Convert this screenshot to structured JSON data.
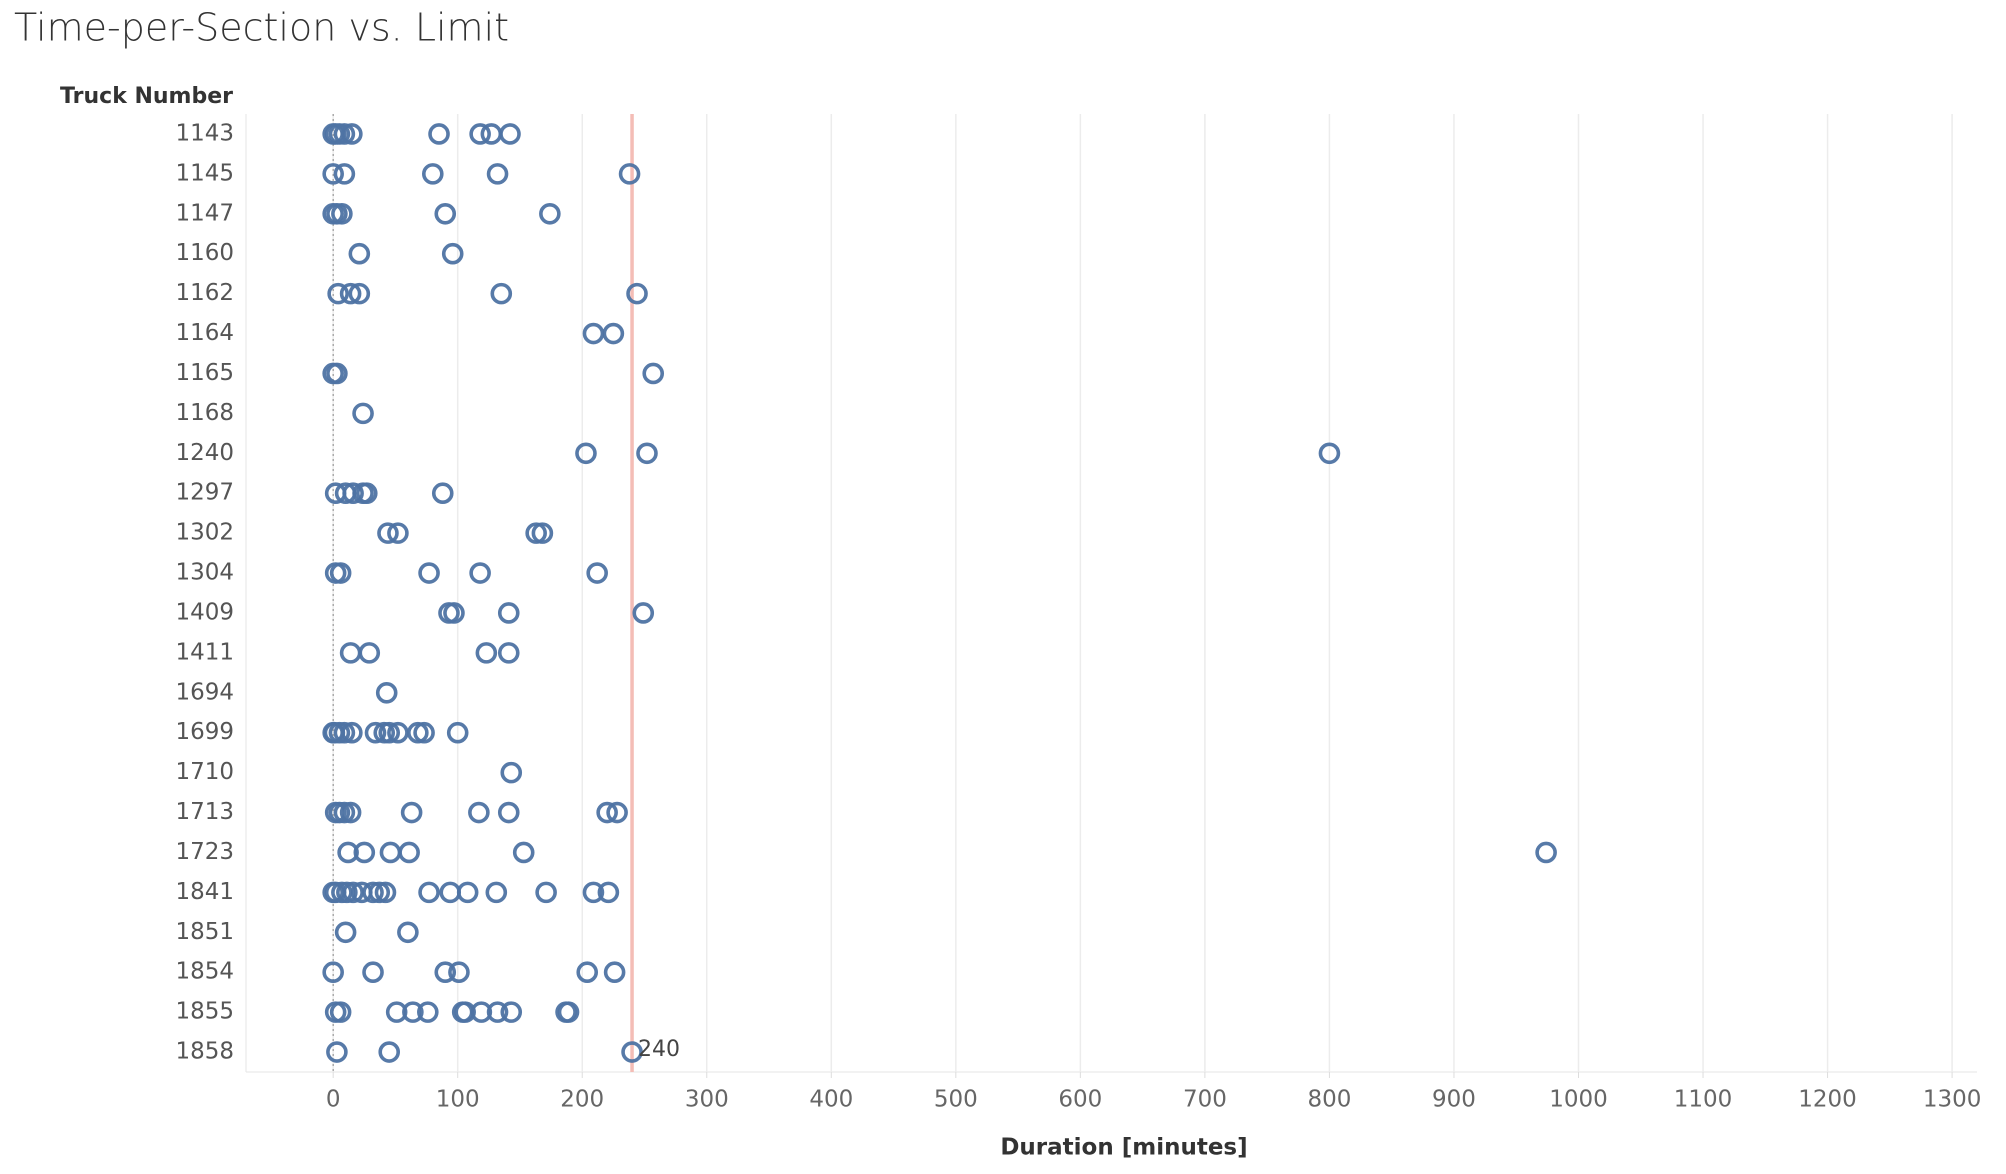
{
  "chart_data": {
    "type": "strip",
    "title": "Time-per-Section vs. Limit",
    "y_header": "Truck Number",
    "x_label": "Duration [minutes]",
    "categories": [
      "1143",
      "1145",
      "1147",
      "1160",
      "1162",
      "1164",
      "1165",
      "1168",
      "1240",
      "1297",
      "1302",
      "1304",
      "1409",
      "1411",
      "1694",
      "1699",
      "1710",
      "1713",
      "1723",
      "1841",
      "1851",
      "1854",
      "1855",
      "1858"
    ],
    "values": [
      [
        0,
        2,
        5,
        9,
        15,
        85,
        118,
        127,
        142
      ],
      [
        0,
        9,
        80,
        132,
        238
      ],
      [
        0,
        3,
        7,
        90,
        174
      ],
      [
        21,
        96
      ],
      [
        4,
        14,
        21,
        135,
        244
      ],
      [
        209,
        225
      ],
      [
        0,
        3,
        257
      ],
      [
        24
      ],
      [
        203,
        252,
        800
      ],
      [
        2,
        10,
        16,
        24,
        27,
        88
      ],
      [
        44,
        52,
        163,
        168
      ],
      [
        2,
        6,
        77,
        118,
        212
      ],
      [
        93,
        97,
        141,
        249
      ],
      [
        14,
        29,
        123,
        141
      ],
      [
        43
      ],
      [
        0,
        1,
        5,
        9,
        15,
        34,
        41,
        45,
        52,
        68,
        73,
        100
      ],
      [
        143
      ],
      [
        2,
        5,
        9,
        14,
        63,
        117,
        141,
        220,
        228
      ],
      [
        12,
        25,
        46,
        61,
        153,
        974
      ],
      [
        0,
        2,
        7,
        11,
        16,
        23,
        32,
        37,
        42,
        77,
        94,
        108,
        131,
        171,
        209,
        221
      ],
      [
        10,
        60
      ],
      [
        0,
        32,
        90,
        101,
        204,
        226
      ],
      [
        2,
        6,
        51,
        64,
        76,
        104,
        106,
        119,
        132,
        143,
        187,
        189
      ],
      [
        3,
        45,
        240
      ]
    ],
    "color": "#4e73a3",
    "xlim": [
      -70,
      1320
    ],
    "xticks": [
      0,
      100,
      200,
      300,
      400,
      500,
      600,
      700,
      800,
      900,
      1000,
      1100,
      1200,
      1300
    ],
    "grid": true,
    "reference_line": 240,
    "reference_color": "#f4bdb6"
  }
}
